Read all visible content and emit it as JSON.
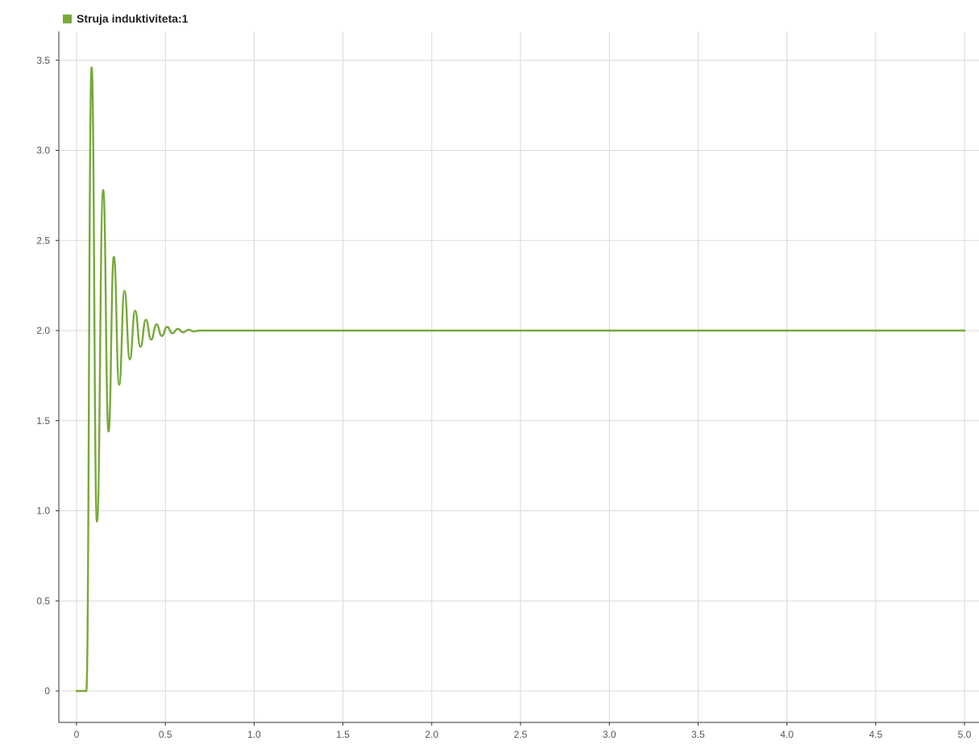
{
  "legend": {
    "label": "Struja induktiviteta:1"
  },
  "colors": {
    "series": "#78a83a",
    "grid": "#d9d9d9",
    "axis": "#333333",
    "tick_text": "#555555"
  },
  "chart_data": {
    "type": "line",
    "title": "",
    "xlabel": "",
    "ylabel": "",
    "xlim": [
      0,
      5.0
    ],
    "ylim": [
      -0.05,
      3.6
    ],
    "x_ticks": [
      "0",
      "0.5",
      "1.0",
      "1.5",
      "2.0",
      "2.5",
      "3.0",
      "3.5",
      "4.0",
      "4.5",
      "5.0"
    ],
    "x_tick_values": [
      0,
      0.5,
      1.0,
      1.5,
      2.0,
      2.5,
      3.0,
      3.5,
      4.0,
      4.5,
      5.0
    ],
    "y_ticks": [
      "0",
      "0.5",
      "1.0",
      "1.5",
      "2.0",
      "2.5",
      "3.0",
      "3.5"
    ],
    "y_tick_values": [
      0,
      0.5,
      1.0,
      1.5,
      2.0,
      2.5,
      3.0,
      3.5
    ],
    "grid": true,
    "legend_position": "top-left",
    "series": [
      {
        "name": "Struja induktiviteta:1",
        "x": [
          0,
          0.055,
          0.085,
          0.115,
          0.15,
          0.18,
          0.21,
          0.24,
          0.27,
          0.3,
          0.33,
          0.36,
          0.39,
          0.42,
          0.45,
          0.48,
          0.51,
          0.54,
          0.57,
          0.6,
          0.63,
          0.66,
          0.69,
          1.0,
          2.0,
          3.0,
          4.0,
          5.0
        ],
        "y": [
          0,
          0,
          3.46,
          0.94,
          2.78,
          1.44,
          2.41,
          1.7,
          2.22,
          1.84,
          2.11,
          1.91,
          2.06,
          1.95,
          2.035,
          1.97,
          2.02,
          1.985,
          2.01,
          1.99,
          2.005,
          1.995,
          2.0,
          2.0,
          2.0,
          2.0,
          2.0,
          2.0
        ]
      }
    ]
  }
}
